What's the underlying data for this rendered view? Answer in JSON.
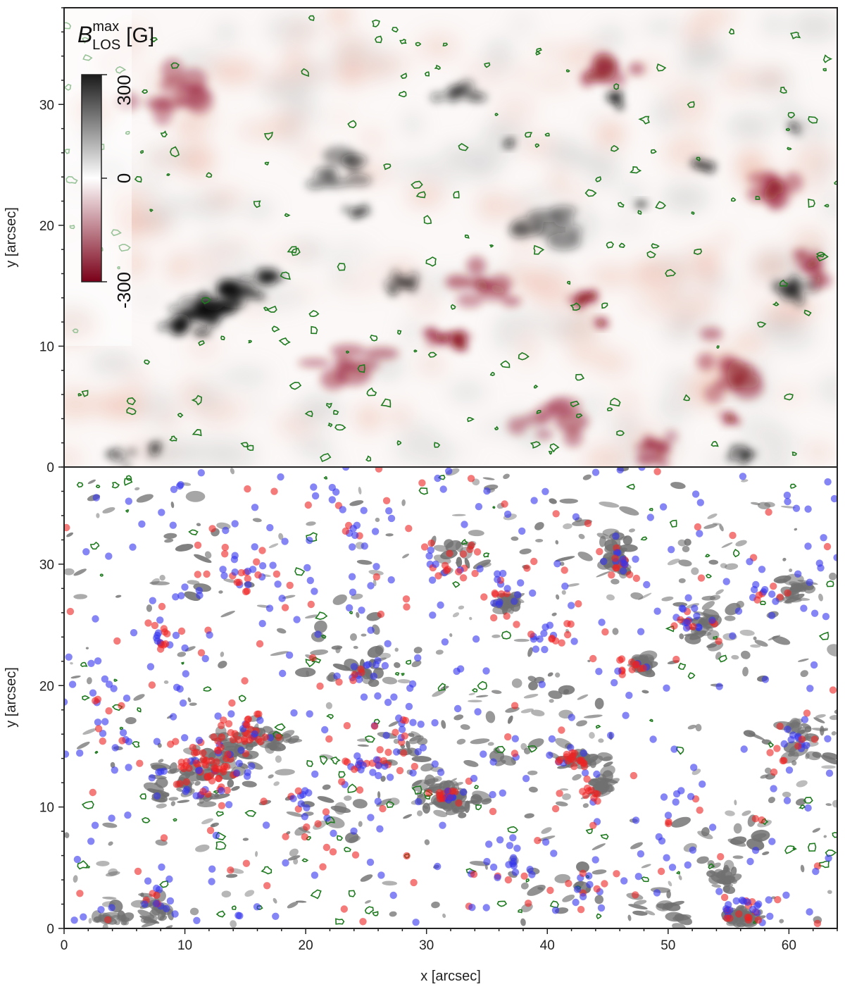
{
  "chart_data": [
    {
      "type": "heatmap",
      "panel": "top",
      "title": "",
      "colorbar": {
        "label_base": "B",
        "label_sup": "max",
        "label_sub": "LOS",
        "label_unit": "[G]",
        "ticks": [
          "300",
          "0",
          "-300"
        ],
        "range": [
          -300,
          300
        ],
        "colors": {
          "positive": "#1a1a1a",
          "zero": "#ffffff",
          "negative": "#7a0018"
        }
      },
      "xlim": [
        0,
        64
      ],
      "ylim": [
        0,
        38
      ],
      "xlabel": "",
      "ylabel": "y [arcsec]",
      "yticks": [
        "0",
        "10",
        "20",
        "30"
      ],
      "contour_color": "#1e7a1e",
      "positive_patches": [
        {
          "x": 12.0,
          "y": 12.8,
          "rx": 2.0,
          "ry": 1.1,
          "strength": 1.0
        },
        {
          "x": 14.0,
          "y": 14.5,
          "rx": 1.8,
          "ry": 0.9,
          "strength": 0.95
        },
        {
          "x": 9.5,
          "y": 11.8,
          "rx": 1.2,
          "ry": 0.8,
          "strength": 0.9
        },
        {
          "x": 16.5,
          "y": 15.8,
          "rx": 1.5,
          "ry": 0.6,
          "strength": 0.75
        },
        {
          "x": 7.5,
          "y": 1.5,
          "rx": 0.5,
          "ry": 0.5,
          "strength": 0.9
        },
        {
          "x": 45.7,
          "y": 30.5,
          "rx": 0.6,
          "ry": 0.7,
          "strength": 1.0
        },
        {
          "x": 56.2,
          "y": 1.0,
          "rx": 0.8,
          "ry": 0.5,
          "strength": 1.0
        },
        {
          "x": 47.8,
          "y": 21.7,
          "rx": 0.4,
          "ry": 0.3,
          "strength": 0.9
        },
        {
          "x": 52.8,
          "y": 25.0,
          "rx": 0.9,
          "ry": 0.5,
          "strength": 0.6
        },
        {
          "x": 36.8,
          "y": 26.8,
          "rx": 0.4,
          "ry": 0.4,
          "strength": 0.7
        },
        {
          "x": 24.5,
          "y": 21.2,
          "rx": 0.8,
          "ry": 0.6,
          "strength": 0.5
        },
        {
          "x": 28.0,
          "y": 15.0,
          "rx": 1.0,
          "ry": 1.0,
          "strength": 0.35
        },
        {
          "x": 60.5,
          "y": 15.0,
          "rx": 1.5,
          "ry": 1.2,
          "strength": 0.3
        },
        {
          "x": 4.5,
          "y": 1.0,
          "rx": 1.0,
          "ry": 0.6,
          "strength": 0.4
        },
        {
          "x": 60.5,
          "y": 28.0,
          "rx": 0.6,
          "ry": 0.5,
          "strength": 0.45
        },
        {
          "x": 33.0,
          "y": 31.0,
          "rx": 1.5,
          "ry": 1.0,
          "strength": 0.25
        },
        {
          "x": 22.0,
          "y": 24.0,
          "rx": 2.5,
          "ry": 1.5,
          "strength": 0.2
        },
        {
          "x": 40.0,
          "y": 20.0,
          "rx": 2.5,
          "ry": 1.5,
          "strength": 0.2
        }
      ],
      "negative_patches": [
        {
          "x": 32.5,
          "y": 10.5,
          "rx": 0.9,
          "ry": 0.6,
          "strength": 1.0
        },
        {
          "x": 31.0,
          "y": 10.8,
          "rx": 1.2,
          "ry": 0.6,
          "strength": 0.6
        },
        {
          "x": 43.0,
          "y": 13.8,
          "rx": 1.1,
          "ry": 0.6,
          "strength": 0.9
        },
        {
          "x": 44.5,
          "y": 11.8,
          "rx": 0.5,
          "ry": 0.4,
          "strength": 0.85
        },
        {
          "x": 55.0,
          "y": 4.0,
          "rx": 0.6,
          "ry": 0.5,
          "strength": 0.7
        },
        {
          "x": 49.0,
          "y": 1.5,
          "rx": 1.5,
          "ry": 1.0,
          "strength": 0.35
        },
        {
          "x": 62.0,
          "y": 16.5,
          "rx": 1.2,
          "ry": 1.2,
          "strength": 0.4
        },
        {
          "x": 55.5,
          "y": 7.5,
          "rx": 2.5,
          "ry": 2.0,
          "strength": 0.25
        },
        {
          "x": 35.0,
          "y": 15.0,
          "rx": 2.5,
          "ry": 1.5,
          "strength": 0.3
        },
        {
          "x": 23.0,
          "y": 8.5,
          "rx": 2.5,
          "ry": 1.5,
          "strength": 0.2
        },
        {
          "x": 45.0,
          "y": 33.0,
          "rx": 2.0,
          "ry": 1.5,
          "strength": 0.25
        },
        {
          "x": 10.0,
          "y": 31.0,
          "rx": 3.0,
          "ry": 2.0,
          "strength": 0.15
        },
        {
          "x": 58.0,
          "y": 23.0,
          "rx": 2.5,
          "ry": 2.0,
          "strength": 0.2
        },
        {
          "x": 40.0,
          "y": 4.0,
          "rx": 2.5,
          "ry": 1.5,
          "strength": 0.2
        }
      ]
    },
    {
      "type": "scatter",
      "panel": "bottom",
      "title": "",
      "xlim": [
        0,
        64
      ],
      "ylim": [
        0,
        38
      ],
      "xlabel": "x [arcsec]",
      "ylabel": "y [arcsec]",
      "xticks": [
        "0",
        "10",
        "20",
        "30",
        "40",
        "50",
        "60"
      ],
      "yticks": [
        "0",
        "10",
        "20",
        "30"
      ],
      "grey_regions_color": "#707070",
      "contour_color": "#1e7a1e",
      "colors": {
        "blue": "#3333ee",
        "red": "#ee2222"
      },
      "clusters": [
        {
          "x": 12.0,
          "y": 13.5,
          "sx": 2.5,
          "sy": 2.0,
          "n": 70,
          "red_frac": 0.75
        },
        {
          "x": 15.0,
          "y": 16.5,
          "sx": 2.0,
          "sy": 1.5,
          "n": 30,
          "red_frac": 0.7
        },
        {
          "x": 8.0,
          "y": 23.5,
          "sx": 1.0,
          "sy": 1.0,
          "n": 14,
          "red_frac": 0.5
        },
        {
          "x": 14.5,
          "y": 29.5,
          "sx": 2.5,
          "sy": 2.0,
          "n": 30,
          "red_frac": 0.45
        },
        {
          "x": 24.5,
          "y": 21.0,
          "sx": 1.5,
          "sy": 1.2,
          "n": 14,
          "red_frac": 0.45
        },
        {
          "x": 26.0,
          "y": 13.5,
          "sx": 2.5,
          "sy": 1.0,
          "n": 28,
          "red_frac": 0.55
        },
        {
          "x": 31.5,
          "y": 11.0,
          "sx": 1.3,
          "sy": 0.7,
          "n": 18,
          "red_frac": 0.7
        },
        {
          "x": 28.0,
          "y": 16.5,
          "sx": 0.8,
          "sy": 1.2,
          "n": 10,
          "red_frac": 0.6
        },
        {
          "x": 32.0,
          "y": 30.0,
          "sx": 1.8,
          "sy": 1.5,
          "n": 20,
          "red_frac": 0.5
        },
        {
          "x": 37.0,
          "y": 28.0,
          "sx": 1.5,
          "sy": 2.0,
          "n": 18,
          "red_frac": 0.4
        },
        {
          "x": 42.5,
          "y": 13.8,
          "sx": 1.5,
          "sy": 0.6,
          "n": 20,
          "red_frac": 0.8
        },
        {
          "x": 43.5,
          "y": 11.0,
          "sx": 1.0,
          "sy": 1.0,
          "n": 10,
          "red_frac": 0.5
        },
        {
          "x": 46.0,
          "y": 30.5,
          "sx": 1.2,
          "sy": 1.2,
          "n": 20,
          "red_frac": 0.55
        },
        {
          "x": 47.0,
          "y": 21.5,
          "sx": 1.2,
          "sy": 0.8,
          "n": 14,
          "red_frac": 0.55
        },
        {
          "x": 51.5,
          "y": 25.5,
          "sx": 1.5,
          "sy": 1.0,
          "n": 16,
          "red_frac": 0.5
        },
        {
          "x": 56.5,
          "y": 1.5,
          "sx": 1.8,
          "sy": 1.2,
          "n": 28,
          "red_frac": 0.45
        },
        {
          "x": 60.5,
          "y": 15.0,
          "sx": 1.5,
          "sy": 1.5,
          "n": 14,
          "red_frac": 0.35
        },
        {
          "x": 7.5,
          "y": 2.5,
          "sx": 1.5,
          "sy": 1.5,
          "n": 12,
          "red_frac": 0.5
        },
        {
          "x": 44.0,
          "y": 3.5,
          "sx": 2.0,
          "sy": 1.5,
          "n": 14,
          "red_frac": 0.45
        },
        {
          "x": 40.0,
          "y": 24.0,
          "sx": 1.5,
          "sy": 1.5,
          "n": 12,
          "red_frac": 0.4
        },
        {
          "x": 20.0,
          "y": 10.0,
          "sx": 2.0,
          "sy": 2.0,
          "n": 14,
          "red_frac": 0.35
        },
        {
          "x": 58.0,
          "y": 28.0,
          "sx": 2.0,
          "sy": 2.0,
          "n": 12,
          "red_frac": 0.35
        },
        {
          "x": 3.0,
          "y": 18.0,
          "sx": 2.0,
          "sy": 3.0,
          "n": 12,
          "red_frac": 0.5
        },
        {
          "x": 36.0,
          "y": 5.0,
          "sx": 2.5,
          "sy": 2.0,
          "n": 14,
          "red_frac": 0.35
        },
        {
          "x": 50.0,
          "y": 9.0,
          "sx": 2.5,
          "sy": 2.0,
          "n": 12,
          "red_frac": 0.35
        },
        {
          "x": 24.0,
          "y": 34.0,
          "sx": 3.0,
          "sy": 2.0,
          "n": 14,
          "red_frac": 0.3
        }
      ],
      "background_points": 420,
      "background_red_frac": 0.3
    }
  ]
}
